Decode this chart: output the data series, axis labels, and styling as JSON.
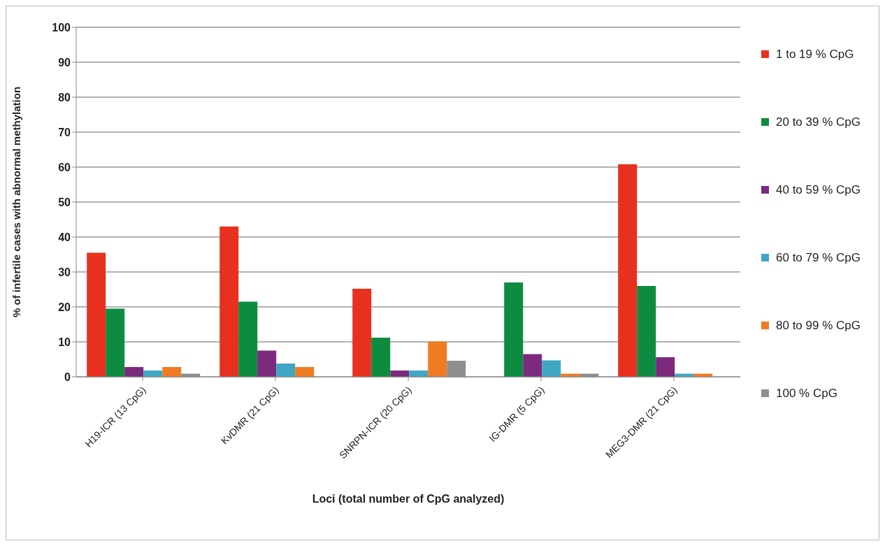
{
  "chart_data": {
    "type": "bar",
    "xlabel": "Loci (total number of CpG analyzed)",
    "ylabel": "% of infertile cases with abnormal methylation",
    "categories": [
      "H19-ICR (13 CpG)",
      "KvDMR (21 CpG)",
      "SNRPN-ICR (20 CpG)",
      "IG-DMR (5 CpG)",
      "MEG3-DMR (21 CpG)"
    ],
    "series": [
      {
        "name": "1 to 19 % CpG",
        "color": "#e8301f",
        "values": [
          35.5,
          43,
          25.2,
          null,
          60.8
        ]
      },
      {
        "name": "20 to 39 % CpG",
        "color": "#0d8c41",
        "values": [
          19.5,
          21.5,
          11.2,
          27,
          26
        ]
      },
      {
        "name": "40 to 59 % CpG",
        "color": "#7b2a7e",
        "values": [
          2.8,
          7.5,
          1.8,
          6.5,
          5.6
        ]
      },
      {
        "name": "60 to 79 % CpG",
        "color": "#3fa6c4",
        "values": [
          1.8,
          3.8,
          1.8,
          4.7,
          0.9
        ]
      },
      {
        "name": "80 to 99 % CpG",
        "color": "#f07c22",
        "values": [
          2.8,
          2.8,
          10.1,
          0.9,
          0.9
        ]
      },
      {
        "name": "100 % CpG",
        "color": "#8e8e8e",
        "values": [
          0.9,
          null,
          4.6,
          0.9,
          null
        ]
      }
    ],
    "ylim": [
      0,
      100
    ],
    "yticks": [
      0,
      10,
      20,
      30,
      40,
      50,
      60,
      70,
      80,
      90,
      100
    ],
    "grid": "y",
    "legend": "right"
  }
}
